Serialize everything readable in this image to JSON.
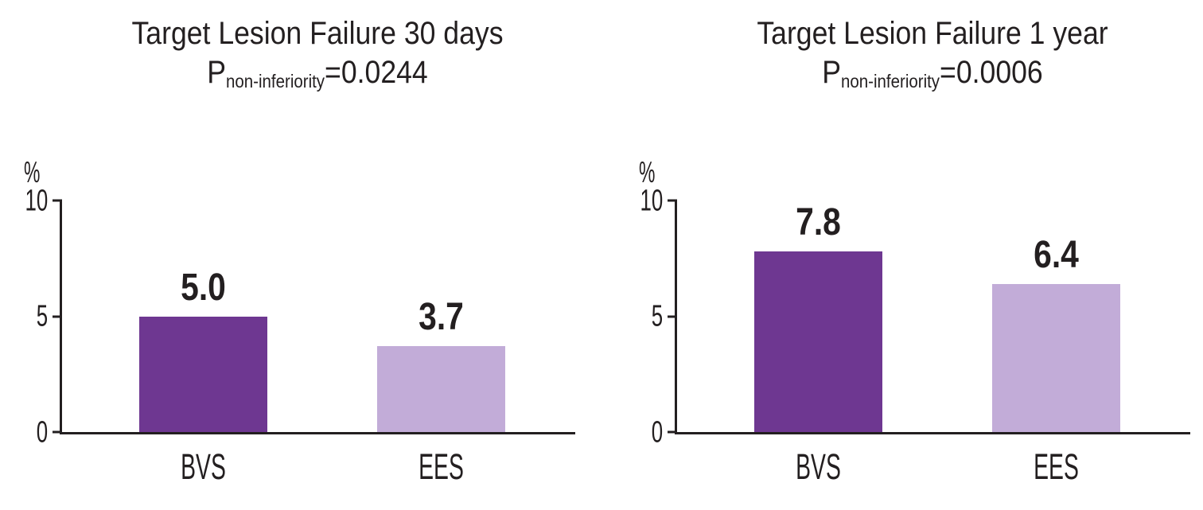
{
  "figure": {
    "background": "#ffffff",
    "text_color": "#231f20",
    "axis_color": "#231f20"
  },
  "chart_data": [
    {
      "type": "bar",
      "title": "Target Lesion Failure 30 days",
      "p_stat": {
        "prefix": "P",
        "subscript": "non-inferiority",
        "value": "=0.0244"
      },
      "ylabel": "%",
      "ylim": [
        0,
        10
      ],
      "yticks": [
        10,
        5,
        0
      ],
      "categories": [
        "BVS",
        "EES"
      ],
      "values": [
        5.0,
        3.7
      ],
      "value_labels": [
        "5.0",
        "3.7"
      ],
      "bar_colors": [
        "#6E3791",
        "#C2ACD8"
      ],
      "grid": false,
      "legend": "none"
    },
    {
      "type": "bar",
      "title": "Target Lesion Failure 1 year",
      "p_stat": {
        "prefix": "P",
        "subscript": "non-inferiority",
        "value": "=0.0006"
      },
      "ylabel": "%",
      "ylim": [
        0,
        10
      ],
      "yticks": [
        10,
        5,
        0
      ],
      "categories": [
        "BVS",
        "EES"
      ],
      "values": [
        7.8,
        6.4
      ],
      "value_labels": [
        "7.8",
        "6.4"
      ],
      "bar_colors": [
        "#6E3791",
        "#C2ACD8"
      ],
      "grid": false,
      "legend": "none"
    }
  ]
}
